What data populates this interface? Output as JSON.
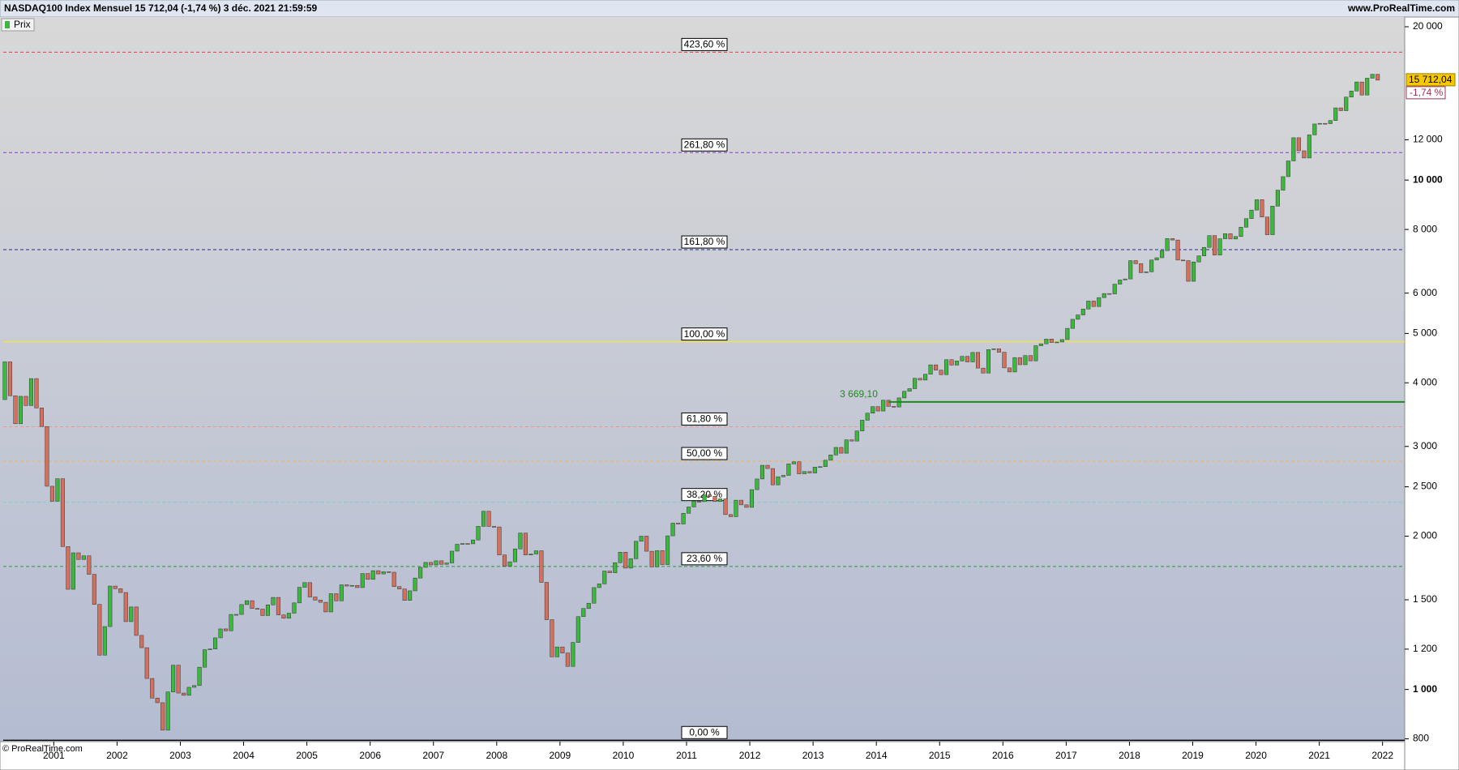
{
  "header": {
    "title": "NASDAQ100 Index Mensuel 15 712,04 (-1,74 %) 3 déc. 2021 21:59:59",
    "site": "www.ProRealTime.com",
    "legend": "Prix",
    "footer": "© ProRealTime.com",
    "price_tag": "15 712,04",
    "change_tag": "-1,74 %"
  },
  "chart_data": {
    "type": "candlestick",
    "log_scale": true,
    "up_color": "#3cb83c",
    "down_color": "#d4705c",
    "xlim": [
      2000.15,
      2022.35
    ],
    "xticks": [
      2001,
      2002,
      2003,
      2004,
      2005,
      2006,
      2007,
      2008,
      2009,
      2010,
      2011,
      2012,
      2013,
      2014,
      2015,
      2016,
      2017,
      2018,
      2019,
      2020,
      2021,
      2022
    ],
    "ylim": [
      790,
      20900
    ],
    "yticks": [
      {
        "value": 20000,
        "label": "20 000"
      },
      {
        "value": 12000,
        "label": "12 000"
      },
      {
        "value": 10000,
        "label": "10 000"
      },
      {
        "value": 8000,
        "label": "8 000"
      },
      {
        "value": 6000,
        "label": "6 000"
      },
      {
        "value": 5000,
        "label": "5 000"
      },
      {
        "value": 4000,
        "label": "4 000"
      },
      {
        "value": 3000,
        "label": "3 000"
      },
      {
        "value": 2500,
        "label": "2 500"
      },
      {
        "value": 2000,
        "label": "2 000"
      },
      {
        "value": 1500,
        "label": "1 500"
      },
      {
        "value": 1200,
        "label": "1 200"
      },
      {
        "value": 1000,
        "label": "1 000"
      },
      800
    ],
    "open": 3708,
    "close": [
      4397,
      3773,
      3324,
      3763,
      3609,
      4077,
      3570,
      3283,
      2506,
      2341,
      2593,
      1908,
      1573,
      1855,
      1800,
      1830,
      1683,
      1469,
      1168,
      1329,
      1596,
      1577,
      1550,
      1359,
      1452,
      1277,
      1208,
      1051,
      962,
      942,
      832,
      989,
      1116,
      984,
      974,
      1010,
      1018,
      1106,
      1197,
      1201,
      1263,
      1315,
      1304,
      1404,
      1404,
      1468,
      1494,
      1442,
      1438,
      1397,
      1466,
      1516,
      1401,
      1380,
      1412,
      1479,
      1587,
      1621,
      1519,
      1498,
      1483,
      1420,
      1542,
      1493,
      1605,
      1596,
      1601,
      1585,
      1689,
      1645,
      1711,
      1686,
      1703,
      1699,
      1592,
      1575,
      1496,
      1562,
      1655,
      1737,
      1776,
      1756,
      1789,
      1761,
      1772,
      1869,
      1928,
      1934,
      1932,
      1966,
      2091,
      2238,
      2090,
      2085,
      1837,
      1745,
      1781,
      1888,
      2028,
      1837,
      1845,
      1872,
      1623,
      1371,
      1159,
      1212,
      1179,
      1110,
      1237,
      1390,
      1442,
      1477,
      1585,
      1612,
      1708,
      1695,
      1774,
      1860,
      1731,
      1806,
      1954,
      2000,
      1868,
      1740,
      1873,
      1759,
      2003,
      2121,
      2113,
      2218,
      2282,
      2341,
      2338,
      2410,
      2394,
      2340,
      2367,
      2205,
      2184,
      2353,
      2304,
      2278,
      2468,
      2590,
      2755,
      2715,
      2522,
      2616,
      2632,
      2772,
      2799,
      2651,
      2678,
      2661,
      2732,
      2738,
      2819,
      2887,
      2987,
      2910,
      3091,
      3074,
      3218,
      3378,
      3487,
      3592,
      3521,
      3697,
      3596,
      3586,
      3736,
      3849,
      3896,
      4082,
      4050,
      4158,
      4338,
      4236,
      4151,
      4441,
      4334,
      4415,
      4508,
      4396,
      4588,
      4275,
      4181,
      4648,
      4665,
      4593,
      4279,
      4201,
      4483,
      4341,
      4524,
      4418,
      4730,
      4771,
      4875,
      4800,
      4810,
      4864,
      5116,
      5330,
      5436,
      5584,
      5788,
      5647,
      5880,
      5988,
      5979,
      6248,
      6367,
      6397,
      6949,
      6854,
      6581,
      6606,
      6968,
      7040,
      7272,
      7677,
      7627,
      6967,
      6949,
      6330,
      6907,
      7099,
      7378,
      7781,
      7127,
      7671,
      7848,
      7663,
      7750,
      8083,
      8403,
      8733,
      9151,
      8462,
      7813,
      8890,
      9555,
      10157,
      10906,
      12111,
      11418,
      11052,
      12268,
      12888,
      12925,
      12909,
      13091,
      13860,
      13687,
      14554,
      14959,
      15582,
      14690,
      15850,
      16135,
      15712
    ],
    "levels": [
      {
        "label": "423,60 %",
        "value": 17828,
        "color": "#e04040",
        "dash": true
      },
      {
        "label": "261,80 %",
        "value": 11322,
        "color": "#8a3cc8",
        "dash": true
      },
      {
        "label": "161,80 %",
        "value": 7301,
        "color": "#2a2a8a",
        "dash": true
      },
      {
        "label": "100,00 %",
        "value": 4816,
        "color": "#f0e050",
        "dash": false
      },
      {
        "label": "61,80 %",
        "value": 3280,
        "color": "#e89a8a",
        "dash": true
      },
      {
        "label": "50,00 %",
        "value": 2806,
        "color": "#f0b060",
        "dash": true
      },
      {
        "label": "38,20 %",
        "value": 2331,
        "color": "#80d0d0",
        "dash": true
      },
      {
        "label": "23,60 %",
        "value": 1744,
        "color": "#2a9a3a",
        "dash": true
      },
      {
        "label": "0,00 %",
        "value": 795,
        "color": "#000000",
        "dash": false
      }
    ],
    "support": {
      "label": "3 669,10",
      "value": 3669.1,
      "color": "#1e8a1e"
    }
  }
}
